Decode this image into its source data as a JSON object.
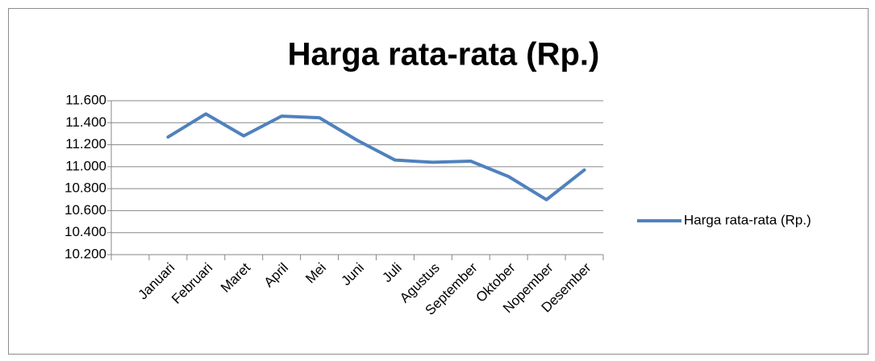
{
  "chart_data": {
    "type": "line",
    "title": "Harga rata-rata (Rp.)",
    "categories": [
      null,
      "Januari",
      "Februari",
      "Maret",
      "April",
      "Mei",
      "Juni",
      "Juli",
      "Agustus",
      "September",
      "Oktober",
      "Nopember",
      "Desember"
    ],
    "series": [
      {
        "name": "Harga rata-rata (Rp.)",
        "color": "#4f81bd",
        "values": [
          null,
          11270,
          11480,
          11280,
          11460,
          11445,
          11240,
          11060,
          11040,
          11050,
          10910,
          10700,
          10970
        ]
      }
    ],
    "ylim": [
      10200,
      11600
    ],
    "yticks": [
      {
        "value": 10200,
        "label": "10.200"
      },
      {
        "value": 10400,
        "label": "10.400"
      },
      {
        "value": 10600,
        "label": "10.600"
      },
      {
        "value": 10800,
        "label": "10.800"
      },
      {
        "value": 11000,
        "label": "11.000"
      },
      {
        "value": 11200,
        "label": "11.200"
      },
      {
        "value": 11400,
        "label": "11.400"
      },
      {
        "value": 11600,
        "label": "11.600"
      }
    ],
    "grid": true,
    "legend": "right"
  }
}
